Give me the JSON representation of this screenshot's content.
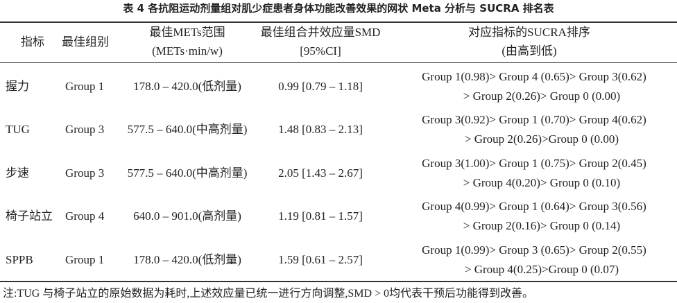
{
  "header": {
    "title": "表 4  各抗阻运动剂量组对肌少症患者身体功能改善效果的网状 Meta 分析与 SUCRA 排名表"
  },
  "table": {
    "columns": [
      [
        "指标"
      ],
      [
        "最佳组别"
      ],
      [
        "最佳METs范围",
        "(METs·min/w)"
      ],
      [
        "最佳组合并效应量SMD",
        "[95%CI]"
      ],
      [
        "对应指标的SUCRA排序",
        "(由高到低)"
      ]
    ],
    "rows": [
      [
        "握力",
        "Group 1",
        "178.0 – 420.0(低剂量)",
        "0.99 [0.79 – 1.18]",
        [
          "Group 1(0.98)> Group 4 (0.65)> Group 3(0.62)",
          "> Group 2(0.26)> Group 0 (0.00)"
        ]
      ],
      [
        "TUG",
        "Group 3",
        "577.5 – 640.0(中高剂量)",
        "1.48 [0.83 – 2.13]",
        [
          "Group 3(0.92)> Group 1 (0.70)> Group 4(0.62)",
          "> Group 2(0.26)>Group 0 (0.00)"
        ]
      ],
      [
        "步速",
        "Group 3",
        "577.5 – 640.0(中高剂量)",
        "2.05 [1.43 – 2.67]",
        [
          "Group 3(1.00)> Group 1 (0.75)> Group 2(0.45)",
          "> Group 4(0.20)> Group 0 (0.10)"
        ]
      ],
      [
        "椅子站立",
        "Group 4",
        "640.0 – 901.0(高剂量)",
        "1.19 [0.81 – 1.57]",
        [
          "Group 4(0.99)> Group 1 (0.64)> Group 3(0.56)",
          "> Group 2(0.16)> Group 0 (0.14)"
        ]
      ],
      [
        "SPPB",
        "Group 1",
        "178.0 – 420.0(低剂量)",
        "1.59 [0.61 – 2.57]",
        [
          "Group 1(0.99)> Group 3 (0.65)> Group 2(0.55)",
          "> Group 4(0.25)>Group 0 (0.07)"
        ]
      ]
    ]
  },
  "note": "注:TUG 与椅子站立的原始数据为耗时,上述效应量已统一进行方向调整,SMD > 0均代表干预后功能得到改善。"
}
